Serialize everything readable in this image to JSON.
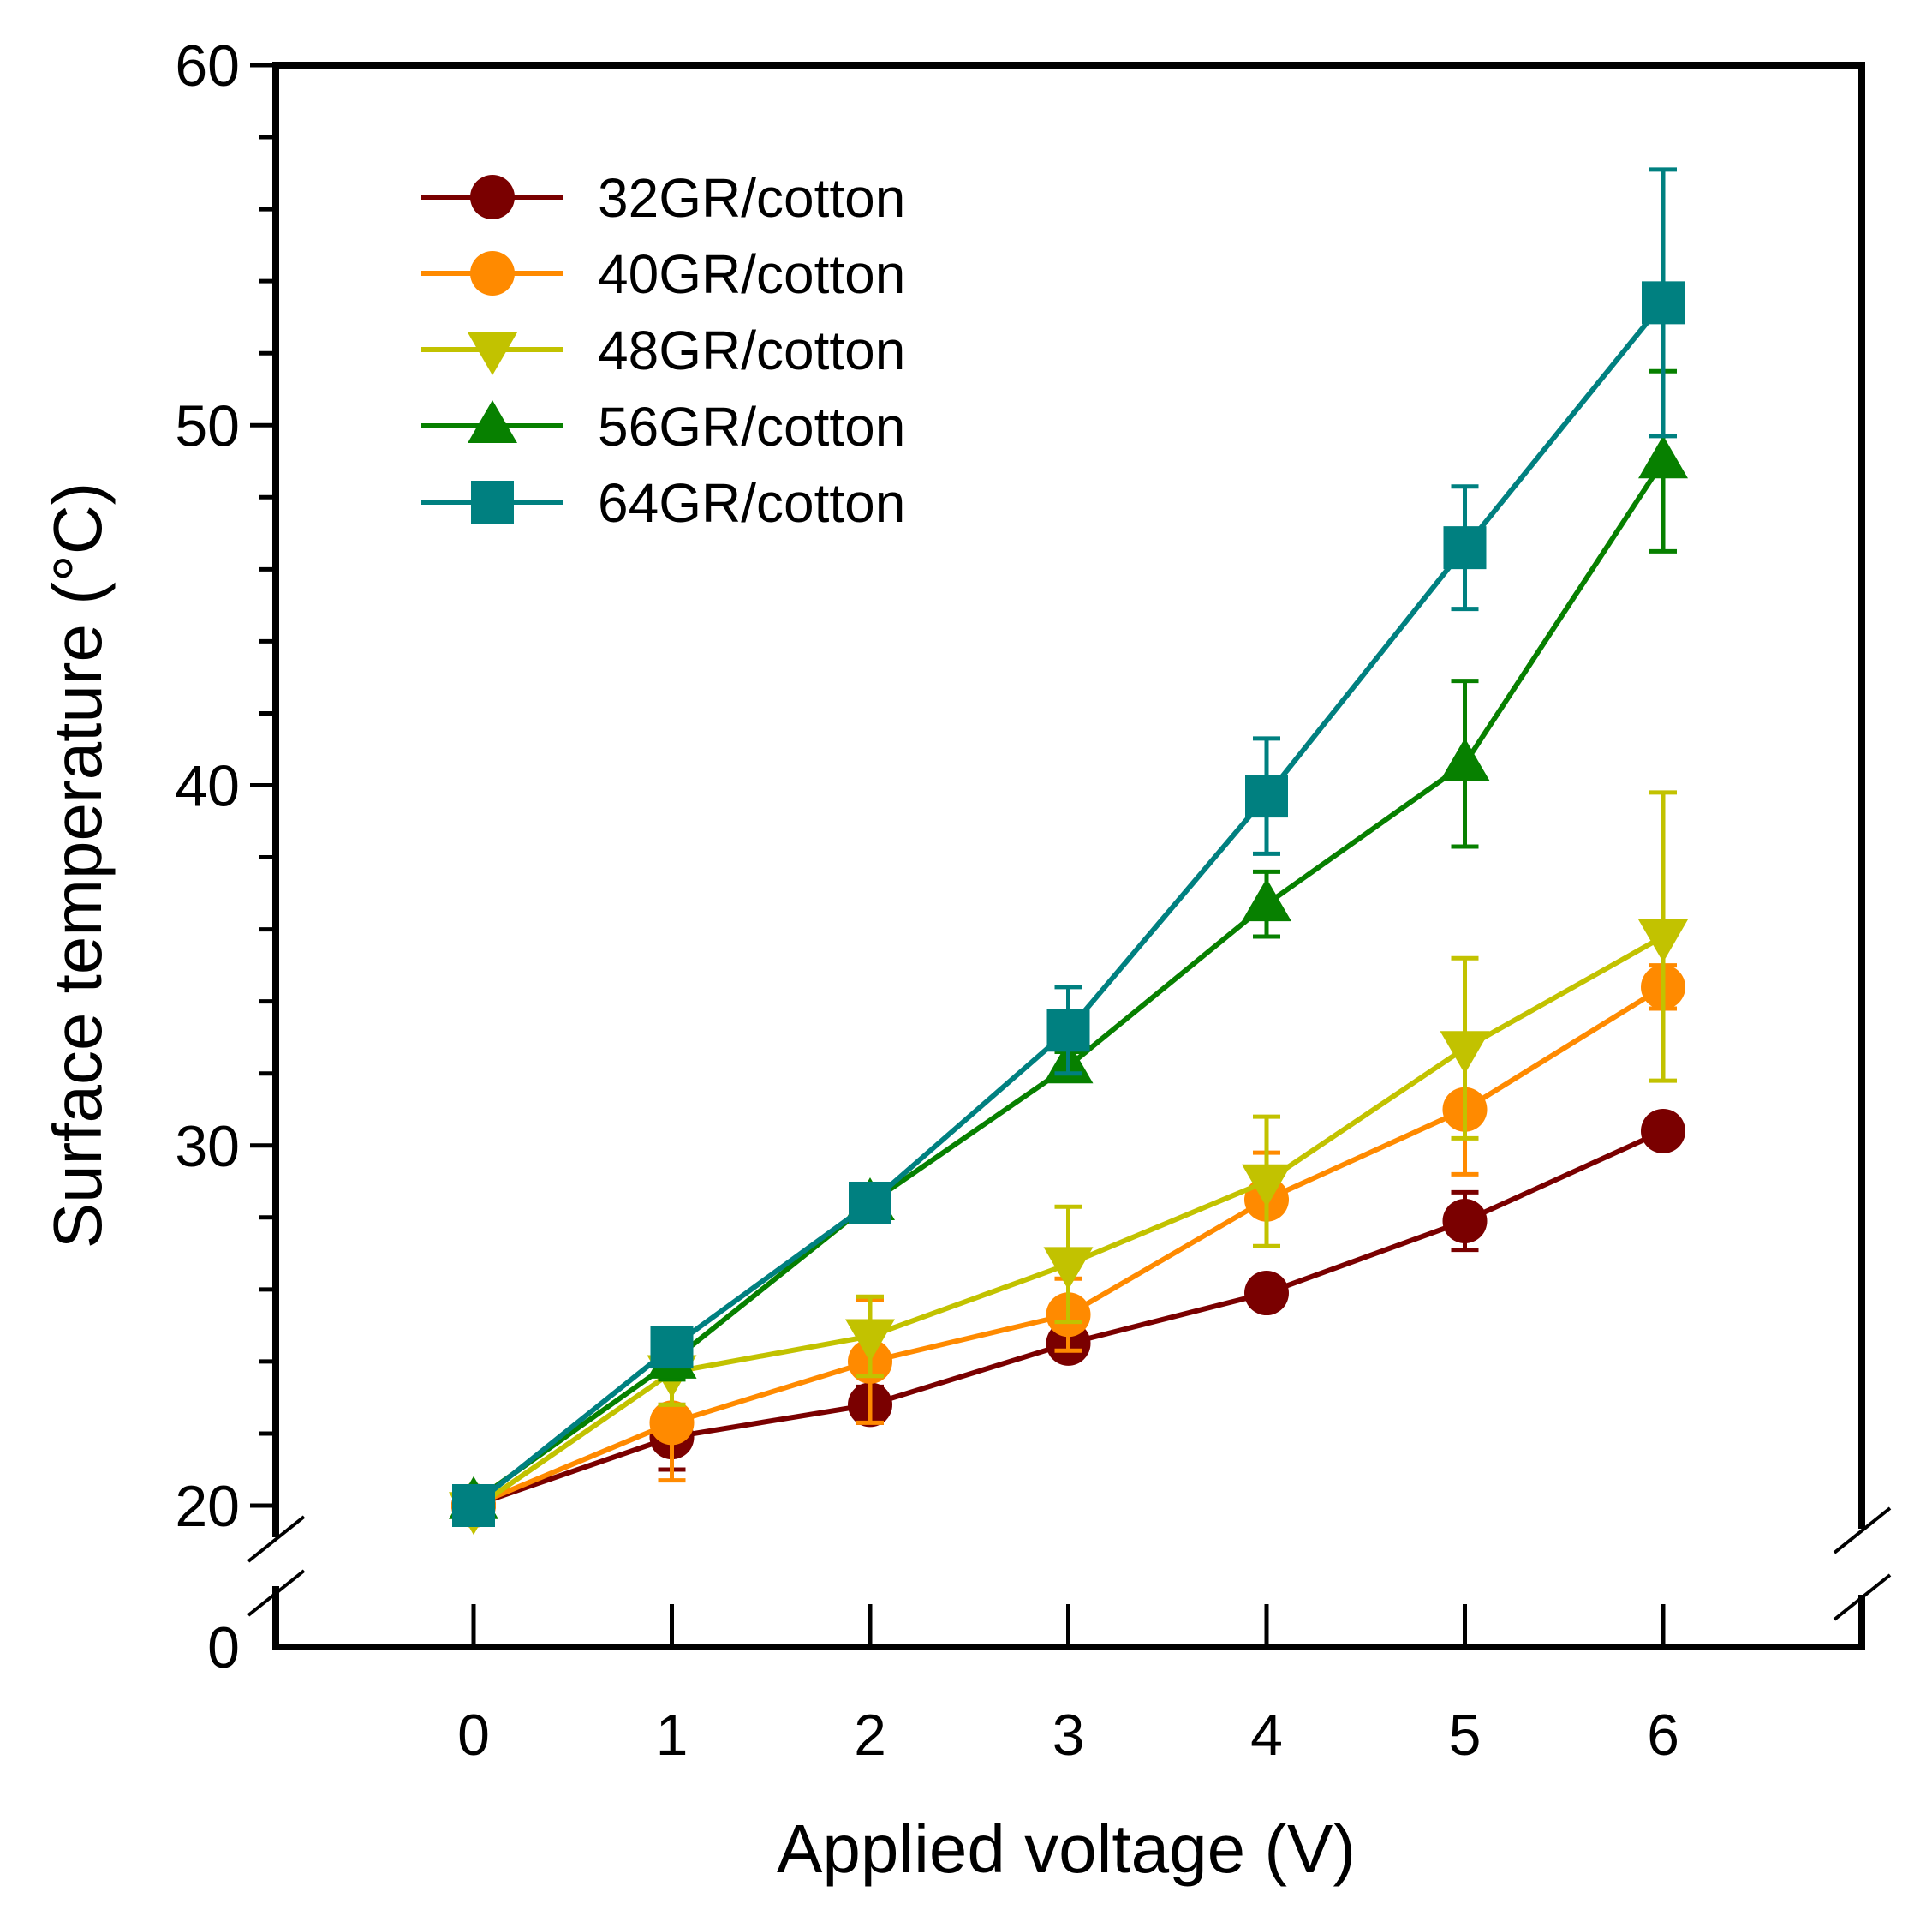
{
  "chart_data": {
    "type": "line",
    "title": "",
    "xlabel": "Applied voltage (V)",
    "ylabel": "Surface temperature (°C)",
    "xlim": [
      -1,
      7
    ],
    "ylim": [
      20,
      60
    ],
    "axis_break": {
      "lower_label": "0",
      "note": "y-axis broken between 0 and 20"
    },
    "x": [
      0,
      1,
      2,
      3,
      4,
      5,
      6
    ],
    "x_ticks": [
      "0",
      "1",
      "2",
      "3",
      "4",
      "5",
      "6"
    ],
    "y_ticks": [
      "20",
      "30",
      "40",
      "50",
      "60"
    ],
    "legend_position": "top-left",
    "series": [
      {
        "name": "32GR/cotton",
        "color": "#7a0000",
        "marker": "circle",
        "values": [
          20.0,
          21.9,
          22.8,
          24.5,
          25.9,
          27.9,
          30.4
        ],
        "errors": [
          0.0,
          0.9,
          0.5,
          0.4,
          0.3,
          0.8,
          0.3
        ]
      },
      {
        "name": "40GR/cotton",
        "color": "#ff8a00",
        "marker": "circle",
        "values": [
          20.0,
          22.3,
          24.0,
          25.3,
          28.5,
          31.0,
          34.4
        ],
        "errors": [
          0.0,
          1.6,
          1.7,
          1.0,
          1.3,
          1.8,
          0.6
        ]
      },
      {
        "name": "48GR/cotton",
        "color": "#c2c200",
        "marker": "triangle-down",
        "values": [
          19.9,
          23.7,
          24.7,
          26.7,
          29.0,
          32.7,
          35.8
        ],
        "errors": [
          0.0,
          0.9,
          1.1,
          1.6,
          1.8,
          2.5,
          4.0
        ]
      },
      {
        "name": "56GR/cotton",
        "color": "#078000",
        "marker": "triangle-up",
        "values": [
          20.1,
          24.0,
          28.4,
          32.2,
          36.7,
          40.6,
          49.0
        ],
        "errors": [
          0.0,
          0.5,
          0.4,
          0.4,
          0.9,
          2.3,
          2.5
        ]
      },
      {
        "name": "64GR/cotton",
        "color": "#008080",
        "marker": "square",
        "values": [
          20.0,
          24.4,
          28.4,
          33.2,
          39.7,
          46.6,
          53.4
        ],
        "errors": [
          0.0,
          0.5,
          0.4,
          1.2,
          1.6,
          1.7,
          3.7
        ]
      }
    ]
  }
}
